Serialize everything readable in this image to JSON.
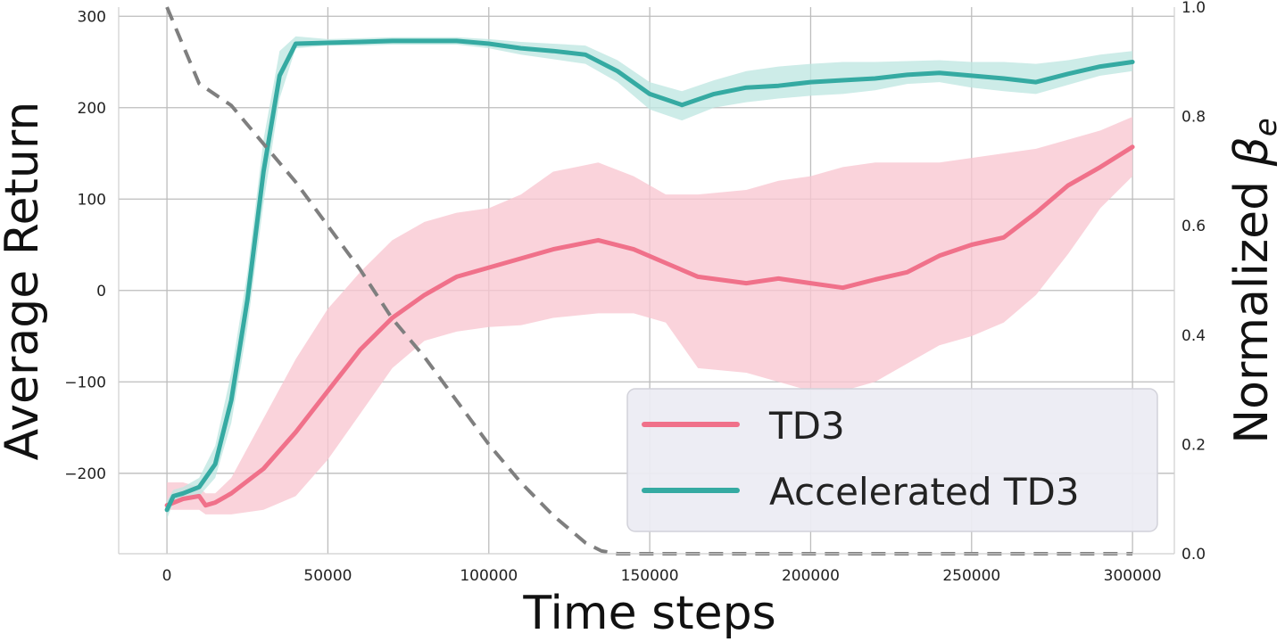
{
  "chart_data": {
    "type": "line",
    "xlabel": "Time steps",
    "ylabel": "Average Return",
    "y2label_main": "Normalized ",
    "y2label_symbol": "β",
    "y2label_sub": "e",
    "xlim": [
      -15000,
      313000
    ],
    "ylim": [
      -288,
      310
    ],
    "y2lim": [
      0.0,
      1.0
    ],
    "xticks": [
      0,
      50000,
      100000,
      150000,
      200000,
      250000,
      300000
    ],
    "yticks": [
      -200,
      -100,
      0,
      100,
      200,
      300
    ],
    "y2ticks": [
      0.0,
      0.2,
      0.4,
      0.6,
      0.8,
      1.0
    ],
    "y2tick_labels": [
      "0.0",
      "0.2",
      "0.4",
      "0.6",
      "0.8",
      "1.0"
    ],
    "grid": true,
    "legend_position": "lower-right",
    "series": [
      {
        "name": "TD3",
        "color": "#f0718a",
        "band_color": "#f9c6d1",
        "axis": "left",
        "x": [
          0,
          5000,
          10000,
          12000,
          15000,
          20000,
          30000,
          40000,
          50000,
          60000,
          70000,
          80000,
          90000,
          100000,
          110000,
          120000,
          134000,
          145000,
          155000,
          165000,
          180000,
          190000,
          200000,
          210000,
          220000,
          230000,
          240000,
          250000,
          260000,
          270000,
          280000,
          290000,
          300000
        ],
        "y": [
          -235,
          -228,
          -225,
          -235,
          -232,
          -222,
          -195,
          -155,
          -110,
          -65,
          -30,
          -5,
          15,
          25,
          35,
          45,
          55,
          45,
          30,
          15,
          8,
          13,
          8,
          3,
          12,
          20,
          38,
          50,
          58,
          85,
          115,
          135,
          157
        ],
        "lower": [
          -240,
          -240,
          -240,
          -245,
          -245,
          -245,
          -240,
          -225,
          -185,
          -135,
          -85,
          -55,
          -45,
          -40,
          -38,
          -30,
          -25,
          -25,
          -35,
          -85,
          -90,
          -100,
          -110,
          -110,
          -100,
          -80,
          -60,
          -50,
          -35,
          -5,
          40,
          90,
          125
        ],
        "upper": [
          -210,
          -210,
          -215,
          -222,
          -222,
          -205,
          -140,
          -75,
          -20,
          20,
          55,
          75,
          85,
          90,
          105,
          130,
          140,
          125,
          105,
          105,
          110,
          120,
          125,
          135,
          140,
          140,
          140,
          145,
          150,
          155,
          165,
          175,
          190
        ]
      },
      {
        "name": "Accelerated TD3",
        "color": "#35aaa2",
        "band_color": "#bfe7e2",
        "axis": "left",
        "x": [
          0,
          2000,
          5000,
          10000,
          15000,
          20000,
          25000,
          30000,
          35000,
          40000,
          50000,
          60000,
          70000,
          80000,
          90000,
          100000,
          110000,
          120000,
          130000,
          140000,
          150000,
          160000,
          170000,
          180000,
          190000,
          200000,
          210000,
          220000,
          230000,
          240000,
          250000,
          260000,
          270000,
          280000,
          290000,
          300000
        ],
        "y": [
          -240,
          -225,
          -222,
          -215,
          -190,
          -120,
          -10,
          130,
          235,
          270,
          271,
          272,
          273,
          273,
          273,
          270,
          265,
          262,
          258,
          240,
          215,
          203,
          215,
          222,
          224,
          228,
          230,
          232,
          236,
          238,
          235,
          232,
          228,
          237,
          245,
          250
        ],
        "lower": [
          -250,
          -232,
          -230,
          -225,
          -205,
          -145,
          -40,
          95,
          210,
          265,
          268,
          268,
          269,
          269,
          269,
          265,
          258,
          253,
          248,
          228,
          198,
          186,
          200,
          206,
          210,
          213,
          215,
          219,
          226,
          228,
          222,
          218,
          215,
          225,
          235,
          240
        ],
        "upper": [
          -230,
          -218,
          -215,
          -205,
          -170,
          -90,
          20,
          165,
          262,
          278,
          275,
          276,
          277,
          277,
          277,
          275,
          272,
          270,
          268,
          252,
          228,
          218,
          230,
          240,
          245,
          248,
          250,
          250,
          251,
          252,
          250,
          250,
          248,
          252,
          258,
          262
        ]
      },
      {
        "name": "",
        "style": "dashed",
        "color": "#7f7f7f",
        "axis": "right",
        "x": [
          0,
          5000,
          10000,
          20000,
          30000,
          40000,
          50000,
          60000,
          70000,
          80000,
          90000,
          100000,
          110000,
          120000,
          130000,
          135000,
          140000,
          150000,
          200000,
          250000,
          300000
        ],
        "y2": [
          1.0,
          0.93,
          0.86,
          0.82,
          0.75,
          0.68,
          0.6,
          0.52,
          0.43,
          0.36,
          0.28,
          0.2,
          0.13,
          0.07,
          0.02,
          0.005,
          0.0,
          0.0,
          0.0,
          0.0,
          0.0
        ]
      }
    ]
  }
}
